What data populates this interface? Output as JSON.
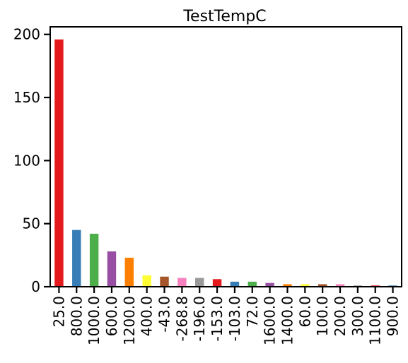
{
  "chart_data": {
    "type": "bar",
    "title": "TestTempC",
    "xlabel": "",
    "ylabel": "",
    "categories": [
      "25.0",
      "800.0",
      "1000.0",
      "600.0",
      "1200.0",
      "400.0",
      "-43.0",
      "-268.8",
      "-196.0",
      "-153.0",
      "-103.0",
      "72.0",
      "1600.0",
      "1400.0",
      "60.0",
      "100.0",
      "200.0",
      "300.0",
      "1100.0",
      "900.0"
    ],
    "values": [
      196,
      45,
      42,
      28,
      23,
      9,
      8,
      7,
      7,
      6,
      4,
      4,
      3,
      2,
      2,
      2,
      2,
      1,
      1,
      1
    ],
    "colors": [
      "#e41a1c",
      "#377eb8",
      "#4daf4a",
      "#984ea3",
      "#ff7f00",
      "#ffff33",
      "#a65628",
      "#f781bf",
      "#999999",
      "#e41a1c",
      "#377eb8",
      "#4daf4a",
      "#984ea3",
      "#ff7f00",
      "#ffff33",
      "#a65628",
      "#f781bf",
      "#999999",
      "#e41a1c",
      "#377eb8"
    ],
    "ylim": [
      0,
      206
    ],
    "yticks": [
      0,
      50,
      100,
      150,
      200
    ],
    "grid": false,
    "legend": "none"
  }
}
